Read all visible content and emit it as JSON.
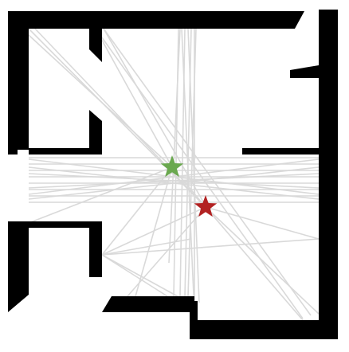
{
  "figure": {
    "type": "floor-plan-visibility-graph",
    "background_color": "#ffffff",
    "wall_color": "#000000",
    "ray_color": "#d9d9d9"
  },
  "markers": [
    {
      "name": "start-marker",
      "shape": "star",
      "color": "#6aa84f"
    },
    {
      "name": "goal-marker",
      "shape": "star",
      "color": "#b22222"
    }
  ]
}
